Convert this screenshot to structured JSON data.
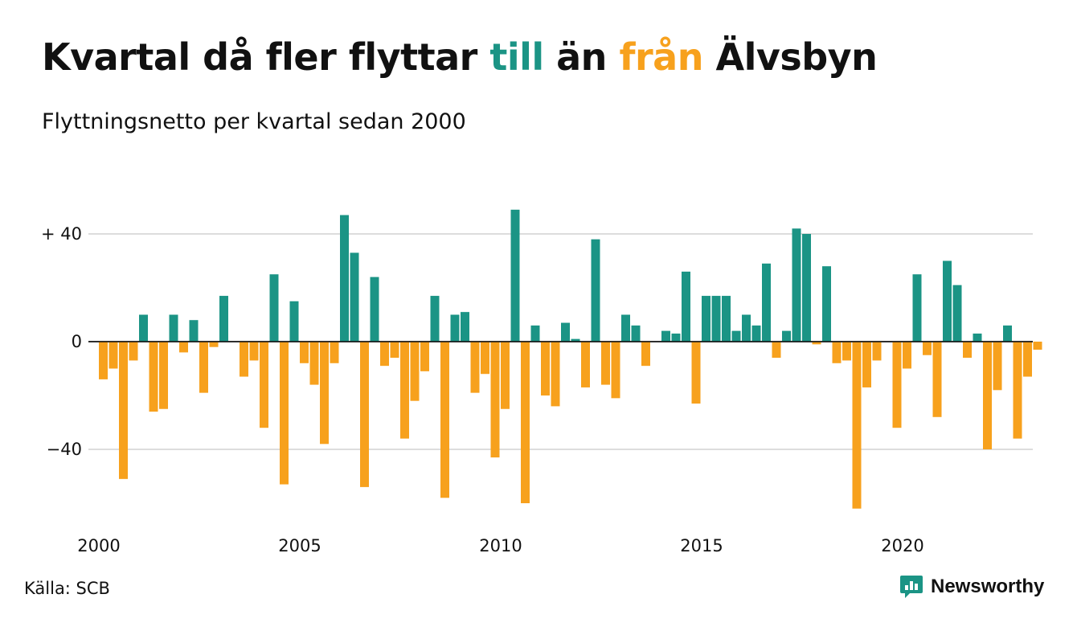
{
  "title": {
    "part1": "Kvartal då fler flyttar ",
    "part2": "till",
    "part3": " än ",
    "part4": "från",
    "part5": " Älvsbyn"
  },
  "subtitle": "Flyttningsnetto per kvartal sedan 2000",
  "source": "Källa: SCB",
  "brand": {
    "name": "Newsworthy",
    "logo_icon": "bar-chart-speech-bubble-icon"
  },
  "colors": {
    "positive": "#1b9485",
    "negative": "#f7a11d",
    "gridline": "#dddddd",
    "zeroline": "#111111",
    "text": "#111111"
  },
  "chart_data": {
    "type": "bar",
    "title": "Kvartal då fler flyttar till än från Älvsbyn",
    "subtitle": "Flyttningsnetto per kvartal sedan 2000",
    "ylim": [
      -65,
      50
    ],
    "y_ticks": [
      {
        "value": 40,
        "label": "+ 40"
      },
      {
        "value": 0,
        "label": "0"
      },
      {
        "value": -40,
        "label": "−40"
      }
    ],
    "x_ticks": [
      {
        "value": 2000,
        "label": "2000"
      },
      {
        "value": 2005,
        "label": "2005"
      },
      {
        "value": 2010,
        "label": "2010"
      },
      {
        "value": 2015,
        "label": "2015"
      },
      {
        "value": 2020,
        "label": "2020"
      }
    ],
    "grid": true,
    "start_year": 2000,
    "values": [
      -14,
      -10,
      -51,
      -7,
      10,
      -26,
      -25,
      10,
      -4,
      8,
      -19,
      -2,
      17,
      0,
      -13,
      -7,
      -32,
      25,
      -53,
      15,
      -8,
      -16,
      -38,
      -8,
      47,
      33,
      -54,
      24,
      -9,
      -6,
      -36,
      -22,
      -11,
      17,
      -58,
      10,
      11,
      -19,
      -12,
      -43,
      -25,
      49,
      -60,
      6,
      -20,
      -24,
      7,
      1,
      -17,
      38,
      -16,
      -21,
      10,
      6,
      -9,
      0,
      4,
      3,
      26,
      -23,
      17,
      17,
      17,
      4,
      10,
      6,
      29,
      -6,
      4,
      42,
      40,
      -1,
      28,
      -8,
      -7,
      -62,
      -17,
      -7,
      0,
      -32,
      -10,
      25,
      -5,
      -28,
      30,
      21,
      -6,
      3,
      -40,
      -18,
      6,
      -36,
      -13,
      -3
    ]
  }
}
